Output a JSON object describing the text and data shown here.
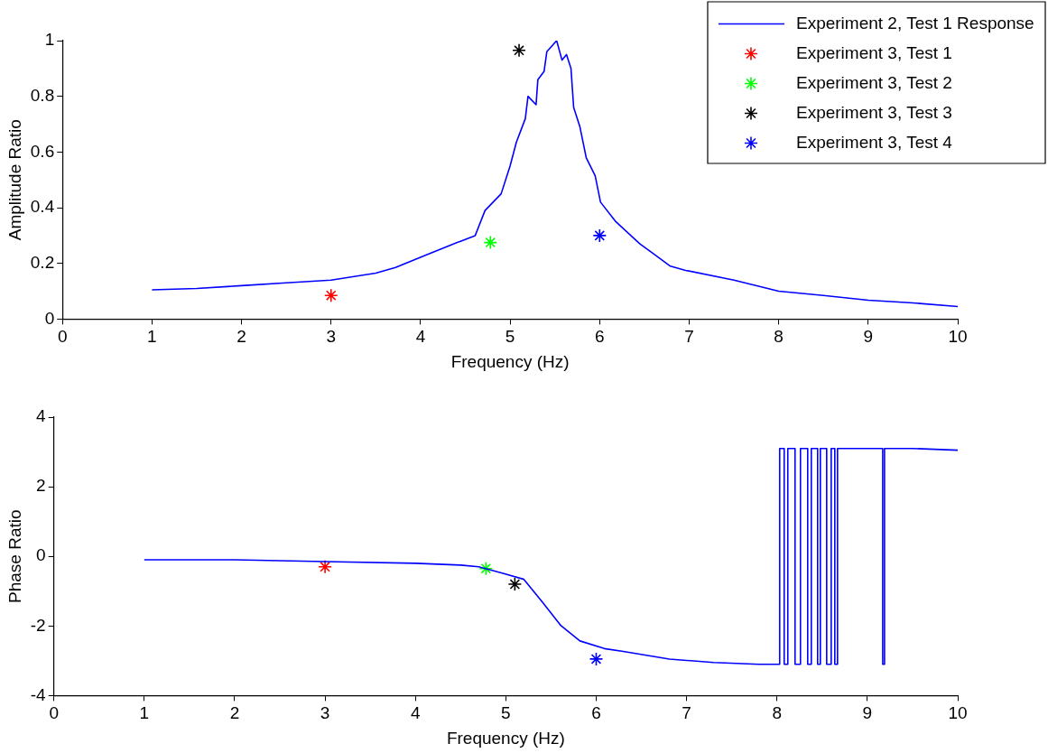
{
  "chart_data": [
    {
      "type": "line",
      "xlabel": "Frequency (Hz)",
      "ylabel": "Amplitude Ratio",
      "xlim": [
        0,
        10
      ],
      "xticks": [
        0,
        1,
        2,
        3,
        4,
        5,
        6,
        7,
        8,
        9,
        10
      ],
      "ylim": [
        0,
        1
      ],
      "yticks": [
        0,
        0.2,
        0.4,
        0.6,
        0.8,
        1
      ],
      "grid": false,
      "legend": "top right",
      "series": [
        {
          "name": "Experiment 2, Test 1 Response",
          "type": "line",
          "color": "#0000ff",
          "marker": "none",
          "x": [
            1,
            1.5,
            2,
            2.5,
            3,
            3.5,
            3.72,
            4.06,
            4.41,
            4.61,
            4.72,
            4.9,
            5.0,
            5.07,
            5.17,
            5.2,
            5.29,
            5.31,
            5.38,
            5.41,
            5.52,
            5.58,
            5.63,
            5.68,
            5.71,
            5.78,
            5.85,
            5.95,
            6.01,
            6.18,
            6.45,
            6.62,
            6.79,
            6.96,
            7.5,
            8,
            8.5,
            9,
            9.5,
            10
          ],
          "values": [
            0.105,
            0.11,
            0.12,
            0.13,
            0.14,
            0.165,
            0.185,
            0.23,
            0.275,
            0.3,
            0.39,
            0.45,
            0.55,
            0.635,
            0.72,
            0.8,
            0.77,
            0.86,
            0.89,
            0.96,
            1.0,
            0.93,
            0.95,
            0.9,
            0.76,
            0.69,
            0.58,
            0.515,
            0.42,
            0.35,
            0.27,
            0.23,
            0.19,
            0.175,
            0.14,
            0.1,
            0.085,
            0.068,
            0.058,
            0.045
          ]
        },
        {
          "name": "Experiment 3, Test 1",
          "type": "scatter",
          "color": "#ff0000",
          "marker": "cross",
          "x": [
            3
          ],
          "values": [
            0.085
          ]
        },
        {
          "name": "Experiment 3, Test 2",
          "type": "scatter",
          "color": "#00ff00",
          "marker": "cross",
          "x": [
            4.78
          ],
          "values": [
            0.275
          ]
        },
        {
          "name": "Experiment 3, Test 3",
          "type": "scatter",
          "color": "#000000",
          "marker": "cross",
          "x": [
            5.1
          ],
          "values": [
            0.965
          ]
        },
        {
          "name": "Experiment 3, Test 4",
          "type": "scatter",
          "color": "#0000ff",
          "marker": "cross",
          "x": [
            6.0
          ],
          "values": [
            0.3
          ]
        }
      ]
    },
    {
      "type": "line",
      "xlabel": "Frequency (Hz)",
      "ylabel": "Phase Ratio",
      "xlim": [
        0,
        10
      ],
      "xticks": [
        0,
        1,
        2,
        3,
        4,
        5,
        6,
        7,
        8,
        9,
        10
      ],
      "ylim": [
        -4,
        4
      ],
      "yticks": [
        -4,
        -2,
        0,
        2,
        4
      ],
      "grid": false,
      "series": [
        {
          "type": "line",
          "color": "#0000ff",
          "marker": "none",
          "x": [
            1,
            2,
            3,
            4,
            4.5,
            4.7,
            4.96,
            5.2,
            5.4,
            5.61,
            5.82,
            6.09,
            6.3,
            6.81,
            7.3,
            7.8,
            8.03,
            8.03,
            8.08,
            8.08,
            8.12,
            8.12,
            8.2,
            8.2,
            8.26,
            8.26,
            8.34,
            8.34,
            8.38,
            8.38,
            8.45,
            8.45,
            8.48,
            8.48,
            8.55,
            8.55,
            8.6,
            8.6,
            8.64,
            8.64,
            8.67,
            8.67,
            8.74,
            8.74,
            9.17,
            9.17,
            9.19,
            9.19,
            9.5,
            10
          ],
          "values": [
            -0.1,
            -0.1,
            -0.15,
            -0.2,
            -0.25,
            -0.3,
            -0.48,
            -0.66,
            -1.3,
            -1.99,
            -2.43,
            -2.65,
            -2.73,
            -2.95,
            -3.05,
            -3.1,
            -3.1,
            3.1,
            3.1,
            -3.1,
            -3.1,
            3.1,
            3.1,
            -3.1,
            -3.1,
            3.1,
            3.1,
            -3.1,
            -3.1,
            3.1,
            3.1,
            -3.1,
            -3.1,
            3.1,
            3.1,
            -3.1,
            -3.1,
            3.1,
            3.1,
            -3.1,
            -3.1,
            3.1,
            3.1,
            3.1,
            3.1,
            -3.1,
            -3.1,
            3.1,
            3.1,
            3.05
          ]
        },
        {
          "type": "scatter",
          "color": "#ff0000",
          "marker": "cross",
          "x": [
            3
          ],
          "values": [
            -0.3
          ]
        },
        {
          "type": "scatter",
          "color": "#00ff00",
          "marker": "cross",
          "x": [
            4.78
          ],
          "values": [
            -0.35
          ]
        },
        {
          "type": "scatter",
          "color": "#000000",
          "marker": "cross",
          "x": [
            5.1
          ],
          "values": [
            -0.8
          ]
        },
        {
          "type": "scatter",
          "color": "#0000ff",
          "marker": "cross",
          "x": [
            6.0
          ],
          "values": [
            -2.95
          ]
        }
      ]
    }
  ]
}
